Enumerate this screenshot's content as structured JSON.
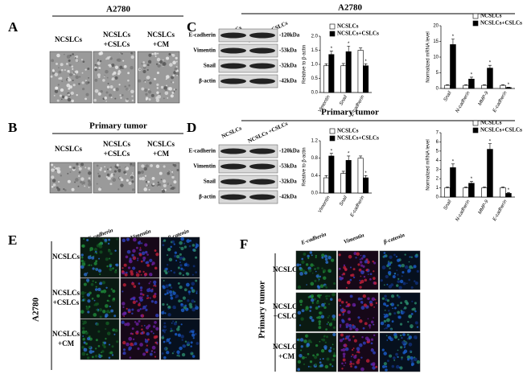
{
  "panel_a": {
    "label": "A",
    "title": "A2780",
    "columns": [
      [
        "NCSLCs"
      ],
      [
        "NCSLCs",
        "+CSLCs"
      ],
      [
        "NCSLCs",
        "+CM"
      ]
    ]
  },
  "panel_b": {
    "label": "B",
    "title": "Primary tumor",
    "columns": [
      [
        "NCSLCs"
      ],
      [
        "NCSLCs",
        "+CSLCs"
      ],
      [
        "NCSLCs",
        "+CM"
      ]
    ]
  },
  "panel_c": {
    "label": "C",
    "title": "A2780",
    "lanes": [
      "NCSLCs",
      "NCSLCs +CSLCs"
    ],
    "bands": [
      "E-cadherin",
      "Vimentin",
      "Snail",
      "β-actin"
    ],
    "sizes": [
      "-120kDa",
      "-53kDa",
      "-32kDa",
      "-42kDa"
    ]
  },
  "panel_d": {
    "label": "D",
    "title": "Primary tumor",
    "lanes": [
      "NCSLCs",
      "NCSLCs +CSLCs"
    ],
    "bands": [
      "E-cadherin",
      "Vimentin",
      "Snail",
      "β-actin"
    ],
    "sizes": [
      "-120kDa",
      "-53kDa",
      "-32kDa",
      "-42kDa"
    ]
  },
  "panel_e": {
    "label": "E",
    "group": "A2780",
    "stains": [
      "E-cadherin",
      "Vimentin",
      "β-catenin"
    ],
    "rows": [
      [
        "NCSLCs"
      ],
      [
        "NCSLCs",
        "+CSLCs"
      ],
      [
        "NCSLCs",
        "+CM"
      ]
    ]
  },
  "panel_f": {
    "label": "F",
    "group": "Primary tumor",
    "stains": [
      "E-cadherin",
      "Vimentin",
      "β-catenin"
    ],
    "rows": [
      [
        "NCSLCs"
      ],
      [
        "NCSLCs",
        "+CSLCs"
      ],
      [
        "NCSLCs",
        "+CM"
      ]
    ]
  },
  "chart_data": [
    {
      "type": "bar",
      "y_label": "Relative to β-actin",
      "categories": [
        "Vimentin",
        "Snail",
        "E-cadherin"
      ],
      "series": [
        {
          "name": "NCSLCs",
          "color": "#ffffff",
          "values": [
            0.95,
            0.95,
            1.5
          ],
          "errors": [
            0.07,
            0.08,
            0.08
          ]
        },
        {
          "name": "NCSLCs+CSLCs",
          "color": "#000000",
          "values": [
            1.35,
            1.45,
            0.95
          ],
          "errors": [
            0.12,
            0.2,
            0.07
          ]
        }
      ],
      "ylim": [
        0,
        2
      ],
      "yticks": [
        {
          "value": 0,
          "label": "0.0"
        },
        {
          "value": 0.5,
          "label": "0.5"
        },
        {
          "value": 1,
          "label": "1.0"
        },
        {
          "value": 1.5,
          "label": "1.5"
        },
        {
          "value": 2,
          "label": "2.0"
        }
      ],
      "significance": "*",
      "legend": "upper right"
    },
    {
      "type": "bar",
      "y_label": "Normalized mRNA level",
      "categories": [
        "Snail",
        "N-cadherin",
        "MMP-9",
        "E-cadherin"
      ],
      "series": [
        {
          "name": "NCSLCs",
          "color": "#ffffff",
          "values": [
            1,
            1,
            1,
            1
          ],
          "errors": [
            0.2,
            0.2,
            0.2,
            0.2
          ]
        },
        {
          "name": "NCSLCs+CSLCs",
          "color": "#000000",
          "values": [
            14,
            3,
            6.5,
            0.3
          ],
          "errors": [
            1.8,
            0.6,
            0.9,
            0.1
          ]
        }
      ],
      "ylim": [
        0,
        20
      ],
      "yticks": [
        0,
        5,
        10,
        15,
        20
      ],
      "significance": "*",
      "legend": "upper right"
    },
    {
      "type": "bar",
      "y_label": "Relative to β-actin",
      "categories": [
        "Vimentin",
        "Snail",
        "E-cadherin"
      ],
      "series": [
        {
          "name": "NCSLCs",
          "color": "#ffffff",
          "values": [
            0.35,
            0.45,
            0.8
          ],
          "errors": [
            0.05,
            0.05,
            0.05
          ]
        },
        {
          "name": "NCSLCs+CSLCs",
          "color": "#000000",
          "values": [
            0.85,
            0.75,
            0.35
          ],
          "errors": [
            0.06,
            0.1,
            0.05
          ]
        }
      ],
      "ylim": [
        0,
        1.2
      ],
      "yticks": [
        {
          "value": 0,
          "label": "0.0"
        },
        {
          "value": 0.4,
          "label": "0.4"
        },
        {
          "value": 0.8,
          "label": "0.8"
        },
        {
          "value": 1.2,
          "label": "1.2"
        }
      ],
      "significance": "*",
      "legend": "upper right"
    },
    {
      "type": "bar",
      "y_label": "Normalized mRNA level",
      "categories": [
        "Snail",
        "N-cadherin",
        "MMP-9",
        "E-cadherin"
      ],
      "series": [
        {
          "name": "NCSLCs",
          "color": "#ffffff",
          "values": [
            1,
            1,
            1,
            1
          ],
          "errors": [
            0.1,
            0.1,
            0.1,
            0.1
          ]
        },
        {
          "name": "NCSLCs+CSLCs",
          "color": "#000000",
          "values": [
            3.2,
            1.5,
            5.2,
            0.4
          ],
          "errors": [
            0.4,
            0.2,
            0.6,
            0.1
          ]
        }
      ],
      "ylim": [
        0,
        7
      ],
      "yticks": [
        0,
        1,
        2,
        3,
        4,
        5,
        6,
        7
      ],
      "significance": "*",
      "legend": "upper right"
    }
  ]
}
